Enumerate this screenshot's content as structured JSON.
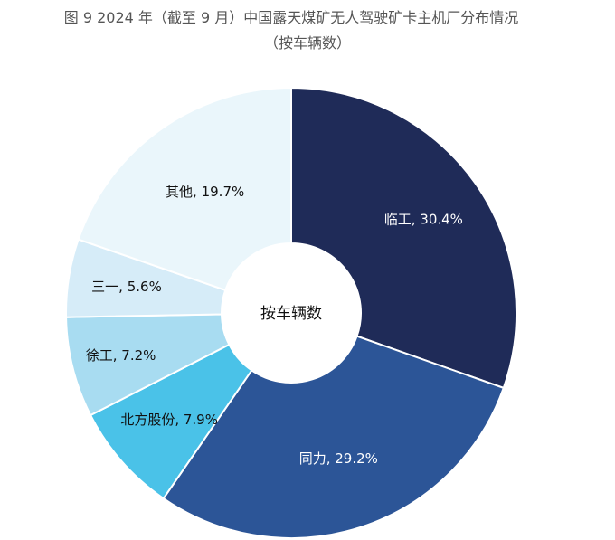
{
  "chart_data": {
    "type": "pie",
    "title": "图 9 2024 年（截至 9 月）中国露天煤矿无人驾驶矿卡主机厂分布情况",
    "subtitle": "（按车辆数）",
    "center_label": "按车辆数",
    "unit": "%",
    "categories": [
      "临工",
      "同力",
      "北方股份",
      "徐工",
      "三一",
      "其他"
    ],
    "values": [
      30.4,
      29.2,
      7.9,
      7.2,
      5.6,
      19.7
    ],
    "labels": [
      "临工, 30.4%",
      "同力, 29.2%",
      "北方股份, 7.9%",
      "徐工, 7.2%",
      "三一, 5.6%",
      "其他, 19.7%"
    ],
    "colors": [
      "#1f2b58",
      "#2c5597",
      "#4ac2e8",
      "#a8dcf1",
      "#d6ecf8",
      "#eaf6fb"
    ],
    "label_colors": [
      "#ffffff",
      "#ffffff",
      "#111111",
      "#111111",
      "#111111",
      "#111111"
    ],
    "legend": "none"
  }
}
